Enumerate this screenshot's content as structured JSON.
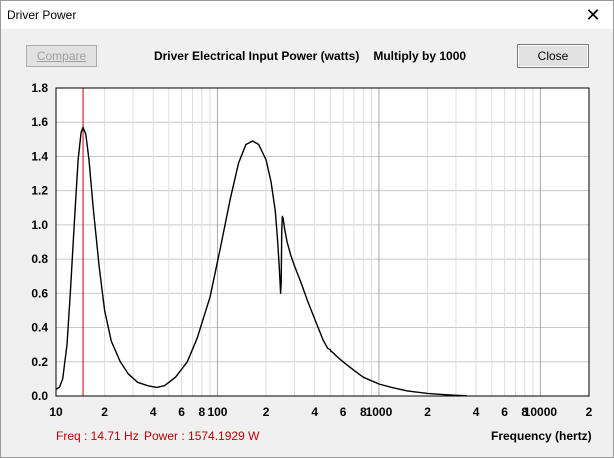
{
  "window": {
    "title": "Driver Power",
    "close_glyph": "✕"
  },
  "toolbar": {
    "compare_label": "Compare",
    "close_label": "Close"
  },
  "chart_data": {
    "type": "line",
    "title": "Driver Electrical Input Power (watts)",
    "subtitle": "Multiply by 1000",
    "xlabel": "Frequency (hertz)",
    "ylabel": "",
    "xscale": "log",
    "xlim": [
      10,
      20000
    ],
    "ylim": [
      0,
      1.8
    ],
    "grid": true,
    "yticks": [
      "0.0",
      "0.2",
      "0.4",
      "0.6",
      "0.8",
      "1.0",
      "1.2",
      "1.4",
      "1.6",
      "1.8"
    ],
    "xtick_labels": [
      {
        "value": 10,
        "label": "10"
      },
      {
        "value": 20,
        "label": "2"
      },
      {
        "value": 40,
        "label": "4"
      },
      {
        "value": 60,
        "label": "6"
      },
      {
        "value": 80,
        "label": "8"
      },
      {
        "value": 100,
        "label": "100"
      },
      {
        "value": 200,
        "label": "2"
      },
      {
        "value": 400,
        "label": "4"
      },
      {
        "value": 600,
        "label": "6"
      },
      {
        "value": 800,
        "label": "8"
      },
      {
        "value": 1000,
        "label": "1000"
      },
      {
        "value": 2000,
        "label": "2"
      },
      {
        "value": 4000,
        "label": "4"
      },
      {
        "value": 6000,
        "label": "6"
      },
      {
        "value": 8000,
        "label": "8"
      },
      {
        "value": 10000,
        "label": "10000"
      },
      {
        "value": 20000,
        "label": "2"
      }
    ],
    "series": [
      {
        "color": "#000000",
        "points": [
          [
            10,
            0.04
          ],
          [
            10.5,
            0.05
          ],
          [
            11,
            0.1
          ],
          [
            11.7,
            0.3
          ],
          [
            12.3,
            0.62
          ],
          [
            13,
            1.02
          ],
          [
            13.7,
            1.38
          ],
          [
            14.3,
            1.54
          ],
          [
            14.7,
            1.57
          ],
          [
            15.3,
            1.53
          ],
          [
            16,
            1.38
          ],
          [
            17,
            1.1
          ],
          [
            18.5,
            0.76
          ],
          [
            20,
            0.5
          ],
          [
            22,
            0.32
          ],
          [
            25,
            0.2
          ],
          [
            28,
            0.13
          ],
          [
            32,
            0.08
          ],
          [
            37,
            0.06
          ],
          [
            42,
            0.05
          ],
          [
            47,
            0.06
          ],
          [
            55,
            0.11
          ],
          [
            65,
            0.2
          ],
          [
            75,
            0.34
          ],
          [
            90,
            0.58
          ],
          [
            105,
            0.88
          ],
          [
            120,
            1.15
          ],
          [
            135,
            1.36
          ],
          [
            150,
            1.47
          ],
          [
            165,
            1.49
          ],
          [
            180,
            1.47
          ],
          [
            200,
            1.38
          ],
          [
            215,
            1.25
          ],
          [
            228,
            1.08
          ],
          [
            236,
            0.9
          ],
          [
            242,
            0.74
          ],
          [
            246,
            0.6
          ],
          [
            248,
            0.66
          ],
          [
            250,
            0.95
          ],
          [
            252,
            1.05
          ],
          [
            255,
            1.04
          ],
          [
            260,
            0.98
          ],
          [
            270,
            0.9
          ],
          [
            285,
            0.82
          ],
          [
            300,
            0.76
          ],
          [
            330,
            0.66
          ],
          [
            360,
            0.56
          ],
          [
            400,
            0.45
          ],
          [
            450,
            0.33
          ],
          [
            480,
            0.28
          ],
          [
            500,
            0.27
          ],
          [
            505,
            0.26
          ],
          [
            510,
            0.26
          ],
          [
            550,
            0.23
          ],
          [
            600,
            0.2
          ],
          [
            700,
            0.15
          ],
          [
            800,
            0.11
          ],
          [
            1000,
            0.07
          ],
          [
            1200,
            0.05
          ],
          [
            1500,
            0.03
          ],
          [
            2000,
            0.015
          ],
          [
            2500,
            0.008
          ],
          [
            3000,
            0.004
          ],
          [
            3500,
            0.002
          ]
        ]
      }
    ],
    "cursor": {
      "x": 14.71,
      "color": "#c00000"
    }
  },
  "readout": {
    "freq_text": "Freq : 14.71 Hz",
    "power_text": "Power : 1574.1929 W"
  }
}
